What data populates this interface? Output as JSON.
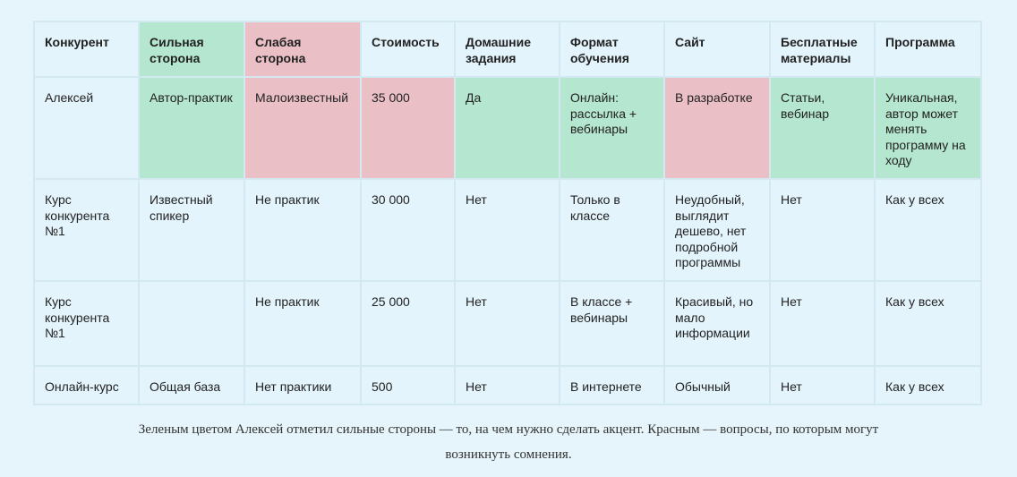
{
  "table": {
    "headers": [
      "Конкурент",
      "Сильная сторона",
      "Слабая сторона",
      "Стоимость",
      "Домашние задания",
      "Формат обучения",
      "Сайт",
      "Бесплатные материалы",
      "Программа"
    ],
    "rows": [
      [
        "Алексей",
        "Автор-практик",
        "Малоизвестный",
        "35 000",
        "Да",
        "Онлайн: рассылка + вебинары",
        "В разработке",
        "Статьи, вебинар",
        "Уникальная, автор может менять программу на ходу"
      ],
      [
        "Курс конкурента №1",
        "Известный спикер",
        "Не практик",
        "30 000",
        "Нет",
        "Только в классе",
        "Неудобный, выглядит дешево, нет подробной программы",
        "Нет",
        "Как у всех"
      ],
      [
        "Курс конкурента №1",
        "",
        "Не практик",
        "25 000",
        "Нет",
        "В классе + вебинары",
        "Красивый, но мало информации",
        "Нет",
        "Как у всех"
      ],
      [
        "Онлайн-курс",
        "Общая база",
        "Нет практики",
        "500",
        "Нет",
        "В интернете",
        "Обычный",
        "Нет",
        "Как у всех"
      ]
    ],
    "colors": {
      "green": "#b5e6cf",
      "pink": "#eac0c6",
      "cell": "#e3f4fc",
      "page": "#e6f4fb"
    }
  },
  "caption": "Зеленым цветом Алексей отметил сильные стороны — то, на чем нужно сделать акцент. Красным — вопросы, по которым могут возникнуть сомнения."
}
